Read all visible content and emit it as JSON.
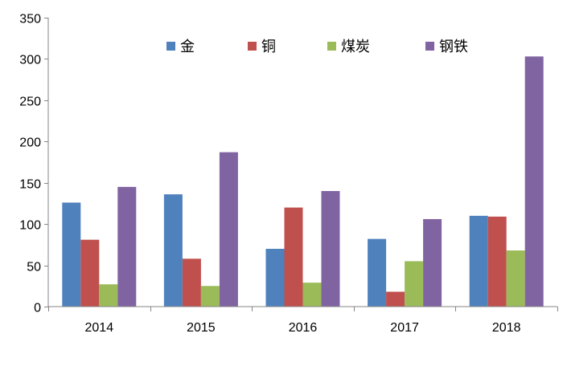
{
  "chart_data": {
    "type": "bar",
    "categories": [
      "2014",
      "2015",
      "2016",
      "2017",
      "2018"
    ],
    "series": [
      {
        "name": "金",
        "color": "#4f81bd",
        "values": [
          126,
          136,
          70,
          82,
          110
        ]
      },
      {
        "name": "铜",
        "color": "#c0504d",
        "values": [
          81,
          58,
          120,
          18,
          109
        ]
      },
      {
        "name": "煤炭",
        "color": "#9bbb59",
        "values": [
          27,
          25,
          29,
          55,
          68
        ]
      },
      {
        "name": "钢铁",
        "color": "#8064a2",
        "values": [
          145,
          187,
          140,
          106,
          303
        ]
      }
    ],
    "yticks": [
      0,
      50,
      100,
      150,
      200,
      250,
      300,
      350
    ],
    "ylim": [
      0,
      350
    ],
    "grid": false,
    "legend": "top-center"
  }
}
